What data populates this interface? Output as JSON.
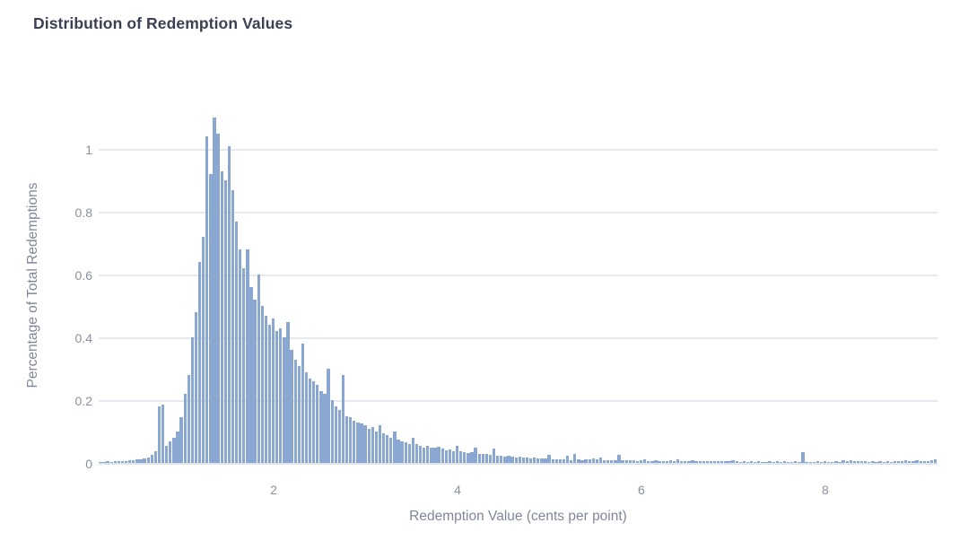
{
  "title": "Distribution of Redemption Values",
  "chart_data": {
    "type": "bar",
    "subtype": "histogram",
    "title": "Distribution of Redemption Values",
    "xlabel": "Redemption Value (cents per point)",
    "ylabel": "Percentage of Total Redemptions",
    "xlim": [
      0.0976,
      9.22
    ],
    "ylim": [
      0,
      1.2
    ],
    "x_tick_values": [
      2,
      4,
      6,
      8
    ],
    "x_tick_labels": [
      "2",
      "4",
      "6",
      "8"
    ],
    "y_tick_values": [
      0,
      0.2,
      0.4,
      0.6,
      0.8,
      1
    ],
    "y_tick_labels": [
      "0",
      "0.2",
      "0.4",
      "0.6",
      "0.8",
      "1"
    ],
    "grid": "horizontal-only",
    "legend": "none",
    "bar_color": "#8aa7d1",
    "gridline_color": "#e6e9f0",
    "bins": {
      "x_start": 0.12,
      "bin_width": 0.04,
      "note": "bin center of first bar is x_start; values are percentage of total redemptions per bin, estimated from pixel heights",
      "values": [
        0.004,
        0.003,
        0.005,
        0.004,
        0.006,
        0.005,
        0.007,
        0.006,
        0.009,
        0.008,
        0.011,
        0.012,
        0.015,
        0.018,
        0.027,
        0.038,
        0.18,
        0.185,
        0.055,
        0.07,
        0.08,
        0.1,
        0.145,
        0.22,
        0.28,
        0.4,
        0.48,
        0.64,
        0.72,
        1.04,
        0.92,
        1.1,
        1.05,
        0.93,
        0.9,
        1.01,
        0.87,
        0.77,
        0.68,
        0.62,
        0.68,
        0.56,
        0.52,
        0.6,
        0.5,
        0.47,
        0.44,
        0.46,
        0.42,
        0.43,
        0.4,
        0.45,
        0.36,
        0.33,
        0.31,
        0.38,
        0.29,
        0.27,
        0.26,
        0.25,
        0.23,
        0.22,
        0.3,
        0.2,
        0.18,
        0.17,
        0.28,
        0.15,
        0.145,
        0.135,
        0.13,
        0.125,
        0.12,
        0.11,
        0.115,
        0.1,
        0.12,
        0.095,
        0.09,
        0.08,
        0.1,
        0.075,
        0.07,
        0.065,
        0.06,
        0.08,
        0.06,
        0.055,
        0.05,
        0.055,
        0.05,
        0.048,
        0.052,
        0.045,
        0.04,
        0.042,
        0.038,
        0.055,
        0.036,
        0.034,
        0.032,
        0.035,
        0.05,
        0.03,
        0.028,
        0.03,
        0.026,
        0.045,
        0.024,
        0.022,
        0.02,
        0.022,
        0.02,
        0.018,
        0.02,
        0.017,
        0.016,
        0.015,
        0.016,
        0.014,
        0.015,
        0.013,
        0.025,
        0.012,
        0.012,
        0.011,
        0.012,
        0.022,
        0.01,
        0.03,
        0.012,
        0.01,
        0.011,
        0.012,
        0.014,
        0.012,
        0.018,
        0.01,
        0.009,
        0.01,
        0.008,
        0.025,
        0.009,
        0.008,
        0.009,
        0.008,
        0.007,
        0.008,
        0.012,
        0.007,
        0.006,
        0.008,
        0.006,
        0.007,
        0.006,
        0.01,
        0.006,
        0.012,
        0.006,
        0.005,
        0.006,
        0.008,
        0.005,
        0.006,
        0.005,
        0.006,
        0.005,
        0.005,
        0.006,
        0.005,
        0.006,
        0.005,
        0.01,
        0.005,
        0.004,
        0.005,
        0.004,
        0.005,
        0.004,
        0.005,
        0.004,
        0.004,
        0.005,
        0.004,
        0.005,
        0.004,
        0.005,
        0.004,
        0.004,
        0.005,
        0.004,
        0.035,
        0.004,
        0.004,
        0.004,
        0.005,
        0.004,
        0.005,
        0.004,
        0.004,
        0.005,
        0.004,
        0.008,
        0.005,
        0.01,
        0.006,
        0.005,
        0.006,
        0.005,
        0.004,
        0.005,
        0.004,
        0.005,
        0.004,
        0.005,
        0.004,
        0.006,
        0.005,
        0.006,
        0.008,
        0.006,
        0.007,
        0.01,
        0.006,
        0.005,
        0.006,
        0.008,
        0.012
      ]
    }
  },
  "colors": {
    "background": "#ffffff",
    "title_text": "#3b4053",
    "axis_label_text": "#81869a",
    "tick_label_text": "#8b8fa1",
    "gridline": "#e6e9f0",
    "bar": "#8aa7d1"
  }
}
